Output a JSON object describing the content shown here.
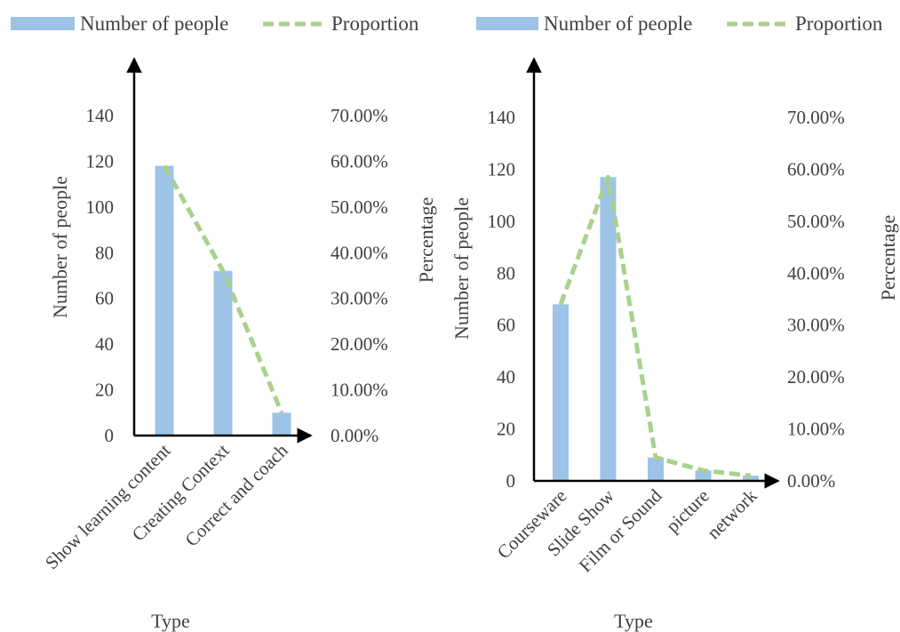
{
  "chart_data": [
    {
      "type": "bar",
      "categories": [
        "Show learning content",
        "Creating Context",
        "Correct and coach"
      ],
      "series": [
        {
          "name": "Number of people",
          "type": "bar",
          "axis": "left",
          "values": [
            118,
            72,
            10
          ]
        },
        {
          "name": "Proportion",
          "type": "line",
          "style": "dashed",
          "axis": "right",
          "values": [
            0.59,
            0.36,
            0.05
          ]
        }
      ],
      "xlabel": "Type",
      "ylabel": "Number of people",
      "y2label": "Percentage",
      "ylim": [
        0,
        140
      ],
      "y2lim": [
        0,
        0.7
      ],
      "yticks": [
        "0",
        "20",
        "40",
        "60",
        "80",
        "100",
        "120",
        "140"
      ],
      "y2ticks": [
        "0.00%",
        "10.00%",
        "20.00%",
        "30.00%",
        "40.00%",
        "50.00%",
        "60.00%",
        "70.00%"
      ],
      "legend": "top",
      "grid": false
    },
    {
      "type": "bar",
      "categories": [
        "Courseware",
        "Slide Show",
        "Film or Sound",
        "picture",
        "network"
      ],
      "series": [
        {
          "name": "Number of people",
          "type": "bar",
          "axis": "left",
          "values": [
            68,
            117,
            9,
            4,
            2
          ]
        },
        {
          "name": "Proportion",
          "type": "line",
          "style": "dashed",
          "axis": "right",
          "values": [
            0.34,
            0.585,
            0.045,
            0.02,
            0.01
          ]
        }
      ],
      "xlabel": "Type",
      "ylabel": "Number of people",
      "y2label": "Percentage",
      "ylim": [
        0,
        140
      ],
      "y2lim": [
        0,
        0.7
      ],
      "yticks": [
        "0",
        "20",
        "40",
        "60",
        "80",
        "100",
        "120",
        "140"
      ],
      "y2ticks": [
        "0.00%",
        "10.00%",
        "20.00%",
        "30.00%",
        "40.00%",
        "50.00%",
        "60.00%",
        "70.00%"
      ],
      "legend": "top",
      "grid": false
    }
  ],
  "colors": {
    "bar": "#9dc3e6",
    "line": "#a9d18e",
    "axis": "#000000",
    "text": "#404040"
  }
}
